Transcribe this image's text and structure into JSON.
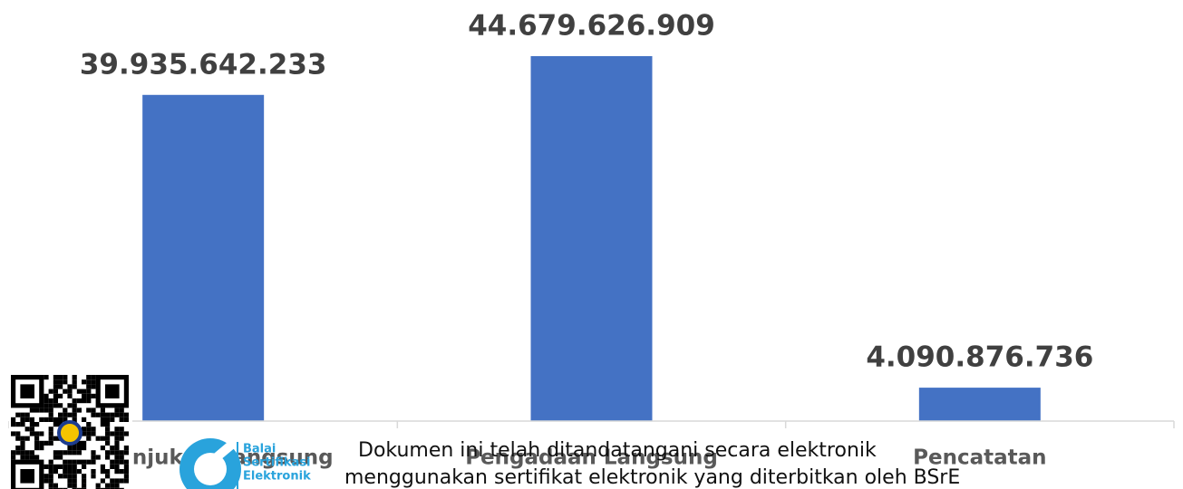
{
  "chart_data": {
    "type": "bar",
    "categories": [
      "Penunjukan Langsung",
      "Pengadaan Langsung",
      "Pencatatan"
    ],
    "values": [
      39935642233,
      44679626909,
      4090876736
    ],
    "value_labels": [
      "39.935.642.233",
      "44.679.626.909",
      "4.090.876.736"
    ],
    "color": "#4472c4"
  },
  "stamp": {
    "lines": [
      "Dokumen ini telah ditandatangani secara elektronik",
      "menggunakan sertifikat elektronik yang diterbitkan oleh BSrE"
    ],
    "logo_text": [
      "Balai",
      "Sertifikasi",
      "Elektronik"
    ]
  }
}
